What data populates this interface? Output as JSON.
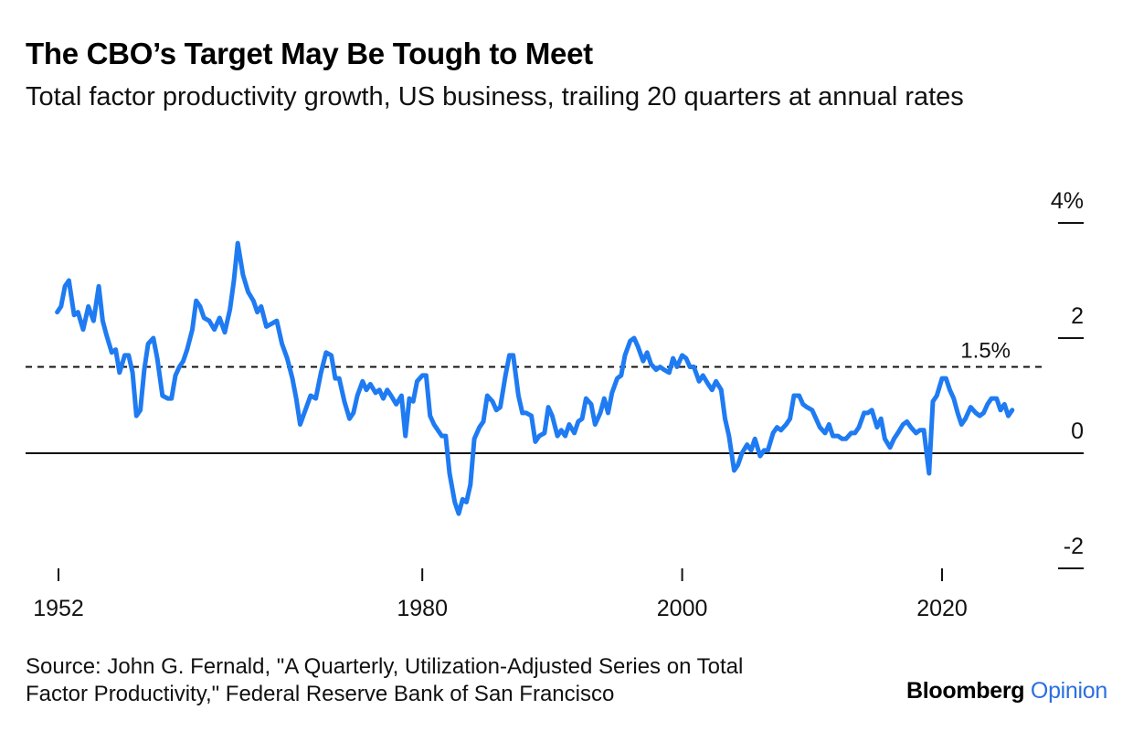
{
  "chart_data": {
    "type": "line",
    "title": "The CBO’s Target May Be Tough to Meet",
    "subtitle": "Total factor productivity growth, US business, trailing 20 quarters at annual rates",
    "xlabel": "",
    "ylabel": "",
    "xlim": [
      1952,
      2028
    ],
    "ylim": [
      -2,
      4
    ],
    "y_ticks": [
      {
        "value": 4,
        "label": "4%"
      },
      {
        "value": 2,
        "label": "2"
      },
      {
        "value": 0,
        "label": "0"
      },
      {
        "value": -2,
        "label": "-2"
      }
    ],
    "x_ticks": [
      {
        "value": 1952,
        "label": "1952"
      },
      {
        "value": 1980,
        "label": "1980"
      },
      {
        "value": 2000,
        "label": "2000"
      },
      {
        "value": 2020,
        "label": "2020"
      }
    ],
    "reference_line": {
      "value": 1.5,
      "label": "1.5%",
      "style": "dashed"
    },
    "zero_line": true,
    "legend": "none",
    "color": "#1f7bf2",
    "series": [
      {
        "name": "Total factor productivity growth",
        "x": [
          1951.9,
          1952.2,
          1952.5,
          1952.8,
          1953.2,
          1953.5,
          1953.9,
          1954.3,
          1954.7,
          1955.1,
          1955.4,
          1955.7,
          1956.1,
          1956.4,
          1956.7,
          1957.1,
          1957.4,
          1957.7,
          1958.0,
          1958.3,
          1958.6,
          1958.9,
          1959.3,
          1959.6,
          1960.0,
          1960.4,
          1960.7,
          1961.0,
          1961.3,
          1961.6,
          1961.9,
          1962.3,
          1962.6,
          1962.9,
          1963.2,
          1963.6,
          1964.0,
          1964.4,
          1964.8,
          1965.2,
          1965.5,
          1965.8,
          1966.2,
          1966.6,
          1967.0,
          1967.3,
          1967.6,
          1968.0,
          1968.4,
          1968.8,
          1969.2,
          1969.6,
          1970.0,
          1970.3,
          1970.6,
          1971.0,
          1971.4,
          1971.8,
          1972.2,
          1972.6,
          1973.0,
          1973.3,
          1973.6,
          1974.0,
          1974.4,
          1974.7,
          1975.0,
          1975.4,
          1975.7,
          1976.0,
          1976.4,
          1976.7,
          1977.0,
          1977.3,
          1977.6,
          1978.0,
          1978.4,
          1978.7,
          1979.0,
          1979.3,
          1979.6,
          1980.0,
          1980.3,
          1980.6,
          1980.9,
          1981.2,
          1981.5,
          1981.8,
          1982.1,
          1982.5,
          1982.8,
          1983.1,
          1983.4,
          1983.7,
          1984.0,
          1984.4,
          1984.7,
          1985.0,
          1985.4,
          1985.7,
          1986.0,
          1986.4,
          1986.7,
          1987.0,
          1987.4,
          1987.7,
          1988.0,
          1988.4,
          1988.7,
          1989.0,
          1989.4,
          1989.7,
          1990.0,
          1990.4,
          1990.7,
          1991.0,
          1991.3,
          1991.7,
          1992.0,
          1992.3,
          1992.6,
          1993.0,
          1993.3,
          1993.7,
          1994.0,
          1994.3,
          1994.6,
          1995.0,
          1995.3,
          1995.6,
          1996.0,
          1996.3,
          1996.6,
          1997.0,
          1997.3,
          1997.6,
          1998.0,
          1998.3,
          1998.6,
          1999.0,
          1999.3,
          1999.6,
          2000.0,
          2000.3,
          2000.6,
          2000.9,
          2001.3,
          2001.6,
          2002.0,
          2002.3,
          2002.6,
          2003.0,
          2003.3,
          2003.6,
          2004.0,
          2004.3,
          2004.6,
          2005.0,
          2005.3,
          2005.6,
          2006.0,
          2006.3,
          2006.6,
          2007.0,
          2007.3,
          2007.6,
          2008.0,
          2008.3,
          2008.6,
          2009.0,
          2009.3,
          2009.6,
          2010.0,
          2010.3,
          2010.6,
          2011.0,
          2011.3,
          2011.6,
          2012.0,
          2012.3,
          2012.6,
          2013.0,
          2013.3,
          2013.6,
          2014.0,
          2014.3,
          2014.6,
          2015.0,
          2015.3,
          2015.6,
          2016.0,
          2016.3,
          2016.6,
          2017.0,
          2017.3,
          2017.6,
          2018.0,
          2018.3,
          2018.6,
          2019.0,
          2019.3,
          2019.6,
          2020.0,
          2020.3,
          2020.6,
          2020.9,
          2021.2,
          2021.5,
          2021.8,
          2022.2,
          2022.6,
          2022.9,
          2023.2,
          2023.5,
          2023.8,
          2024.2,
          2024.5,
          2024.8,
          2025.1,
          2025.4
        ],
        "values": [
          2.45,
          2.55,
          2.9,
          3.0,
          2.4,
          2.45,
          2.15,
          2.55,
          2.3,
          2.9,
          2.3,
          2.05,
          1.75,
          1.8,
          1.4,
          1.7,
          1.7,
          1.4,
          0.65,
          0.75,
          1.45,
          1.9,
          2.0,
          1.65,
          1.0,
          0.95,
          0.95,
          1.35,
          1.5,
          1.6,
          1.8,
          2.15,
          2.65,
          2.55,
          2.35,
          2.3,
          2.15,
          2.35,
          2.1,
          2.5,
          3.0,
          3.65,
          3.1,
          2.8,
          2.65,
          2.45,
          2.55,
          2.2,
          2.25,
          2.3,
          1.9,
          1.65,
          1.3,
          0.95,
          0.5,
          0.75,
          1.0,
          0.95,
          1.4,
          1.75,
          1.7,
          1.3,
          1.3,
          0.9,
          0.6,
          0.7,
          1.0,
          1.25,
          1.1,
          1.2,
          1.05,
          1.1,
          0.95,
          1.1,
          1.0,
          0.85,
          1.0,
          0.3,
          0.95,
          0.9,
          1.25,
          1.35,
          1.35,
          0.65,
          0.5,
          0.4,
          0.3,
          0.3,
          -0.35,
          -0.85,
          -1.05,
          -0.8,
          -0.85,
          -0.55,
          0.25,
          0.45,
          0.55,
          1.0,
          0.9,
          0.75,
          0.8,
          1.35,
          1.7,
          1.7,
          1.0,
          0.7,
          0.7,
          0.65,
          0.2,
          0.3,
          0.35,
          0.8,
          0.65,
          0.3,
          0.4,
          0.3,
          0.5,
          0.35,
          0.55,
          0.6,
          0.95,
          0.85,
          0.5,
          0.7,
          0.95,
          0.7,
          1.05,
          1.3,
          1.35,
          1.7,
          1.95,
          2.0,
          1.85,
          1.6,
          1.75,
          1.55,
          1.45,
          1.5,
          1.45,
          1.4,
          1.65,
          1.5,
          1.7,
          1.65,
          1.5,
          1.5,
          1.25,
          1.35,
          1.2,
          1.1,
          1.25,
          1.1,
          0.6,
          0.3,
          -0.3,
          -0.2,
          0.0,
          0.15,
          0.05,
          0.25,
          -0.05,
          0.05,
          0.05,
          0.35,
          0.45,
          0.4,
          0.5,
          0.6,
          1.0,
          1.0,
          0.85,
          0.8,
          0.75,
          0.6,
          0.45,
          0.35,
          0.5,
          0.3,
          0.3,
          0.25,
          0.25,
          0.35,
          0.35,
          0.45,
          0.7,
          0.7,
          0.75,
          0.45,
          0.6,
          0.25,
          0.1,
          0.25,
          0.35,
          0.5,
          0.55,
          0.45,
          0.35,
          0.4,
          0.4,
          -0.35,
          0.9,
          1.0,
          1.3,
          1.3,
          1.1,
          0.95,
          0.7,
          0.5,
          0.6,
          0.8,
          0.7,
          0.65,
          0.7,
          0.85,
          0.95,
          0.95,
          0.75,
          0.85,
          0.65,
          0.75
        ]
      }
    ]
  },
  "source": {
    "line1": "Source: John G. Fernald, \"A Quarterly, Utilization-Adjusted Series on Total",
    "line2": "Factor Productivity,\" Federal Reserve Bank of San Francisco"
  },
  "brand": {
    "name": "Bloomberg",
    "product": "Opinion"
  }
}
